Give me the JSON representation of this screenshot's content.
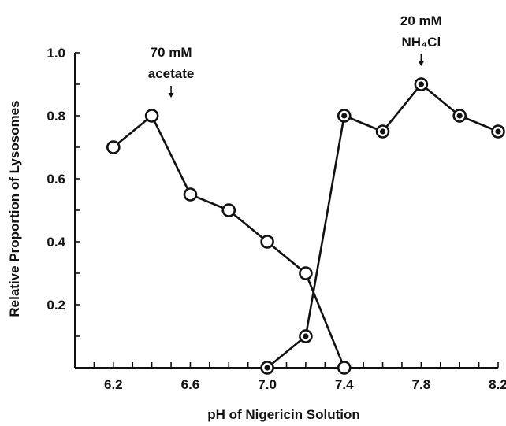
{
  "chart_data": {
    "type": "line",
    "xlabel": "pH of Nigericin Solution",
    "ylabel": "Relative Proportion of Lysosomes",
    "xlim": [
      6.0,
      8.2
    ],
    "ylim": [
      0.0,
      1.0
    ],
    "x_ticks": [
      6.2,
      6.6,
      7.0,
      7.4,
      7.8,
      8.2
    ],
    "x_tick_labels": [
      "6.2",
      "6.6",
      "7.0",
      "7.4",
      "7.8",
      "8.2"
    ],
    "x_minor_step": 0.1,
    "y_ticks": [
      0.2,
      0.4,
      0.6,
      0.8,
      1.0
    ],
    "y_tick_labels": [
      "0.2",
      "0.4",
      "0.6",
      "0.8",
      "1.0"
    ],
    "y_minor_step": 0.1,
    "grid": false,
    "series": [
      {
        "marker": "open-circle",
        "points": [
          [
            6.2,
            0.7
          ],
          [
            6.4,
            0.8
          ],
          [
            6.6,
            0.55
          ],
          [
            6.8,
            0.5
          ],
          [
            7.0,
            0.4
          ],
          [
            7.2,
            0.3
          ],
          [
            7.4,
            0.0
          ]
        ]
      },
      {
        "marker": "filled-circle",
        "points": [
          [
            7.0,
            0.0
          ],
          [
            7.2,
            0.1
          ],
          [
            7.4,
            0.8
          ],
          [
            7.6,
            0.75
          ],
          [
            7.8,
            0.9
          ],
          [
            8.0,
            0.8
          ],
          [
            8.2,
            0.75
          ]
        ]
      }
    ],
    "annotations": [
      {
        "lines": [
          "70 mM",
          "acetate"
        ],
        "arrow_x": 6.5
      },
      {
        "lines": [
          "20 mM",
          "NH₄Cl"
        ],
        "arrow_x": 7.8
      }
    ]
  }
}
